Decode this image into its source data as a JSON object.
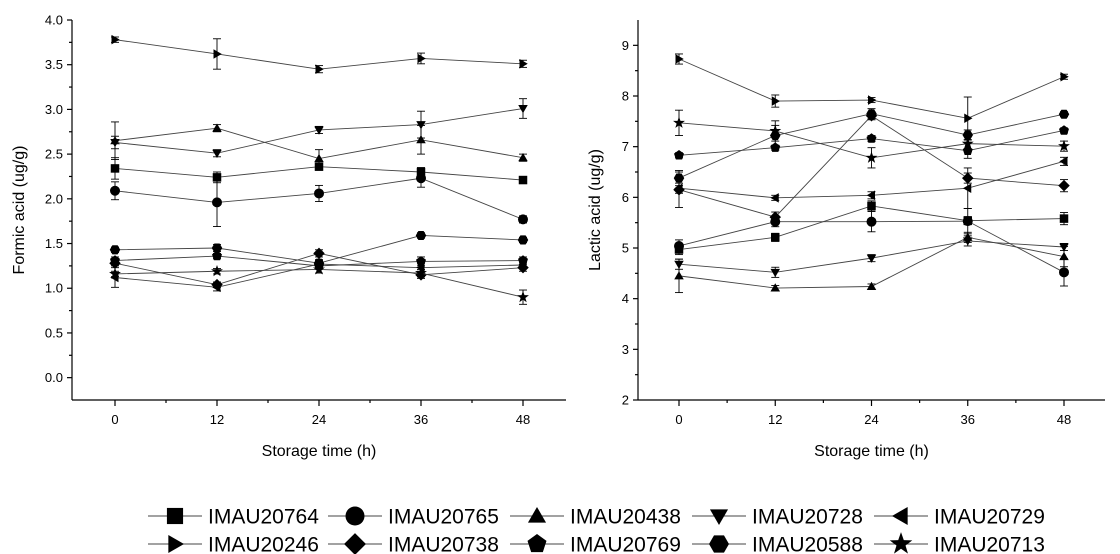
{
  "chart_data": [
    {
      "type": "line",
      "xlabel": "Storage time (h)",
      "ylabel": "Formic acid (ug/g)",
      "x": [
        0,
        12,
        24,
        36,
        48
      ],
      "xticks": [
        "0",
        "12",
        "24",
        "36",
        "48"
      ],
      "ylim": [
        -0.25,
        4.0
      ],
      "yticks": [
        "0.0",
        "0.5",
        "1.0",
        "1.5",
        "2.0",
        "2.5",
        "3.0",
        "3.5",
        "4.0"
      ],
      "series": [
        {
          "name": "IMAU20764",
          "marker": "square",
          "values": [
            2.34,
            2.24,
            2.36,
            2.3,
            2.21
          ],
          "errors": [
            0.12,
            0.06,
            0.04,
            0.05,
            0.03
          ]
        },
        {
          "name": "IMAU20765",
          "marker": "circle",
          "values": [
            2.09,
            1.96,
            2.06,
            2.23,
            1.77
          ],
          "errors": [
            0.1,
            0.27,
            0.09,
            0.1,
            0.04
          ]
        },
        {
          "name": "IMAU20438",
          "marker": "triangle-up",
          "values": [
            2.65,
            2.79,
            2.45,
            2.66,
            2.46
          ],
          "errors": [
            0.21,
            0.04,
            0.1,
            0.16,
            0.04
          ]
        },
        {
          "name": "IMAU20728",
          "marker": "triangle-down",
          "values": [
            2.63,
            2.51,
            2.77,
            2.83,
            3.01
          ],
          "errors": [
            0.07,
            0.04,
            0.04,
            0.15,
            0.11
          ]
        },
        {
          "name": "IMAU20729",
          "marker": "triangle-left",
          "values": [
            1.12,
            1.01,
            1.27,
            1.23,
            1.26
          ],
          "errors": [
            0.11,
            0.04,
            0.04,
            0.05,
            0.03
          ]
        },
        {
          "name": "IMAU20246",
          "marker": "triangle-right",
          "values": [
            3.78,
            3.62,
            3.45,
            3.57,
            3.51
          ],
          "errors": [
            0.03,
            0.17,
            0.04,
            0.06,
            0.04
          ]
        },
        {
          "name": "IMAU20738",
          "marker": "diamond",
          "values": [
            1.28,
            1.04,
            1.39,
            1.15,
            1.23
          ],
          "errors": [
            0.03,
            0.03,
            0.04,
            0.04,
            0.04
          ]
        },
        {
          "name": "IMAU20769",
          "marker": "pentagon",
          "values": [
            1.31,
            1.36,
            1.25,
            1.3,
            1.31
          ],
          "errors": [
            0.04,
            0.03,
            0.04,
            0.05,
            0.04
          ]
        },
        {
          "name": "IMAU20588",
          "marker": "hexagon",
          "values": [
            1.43,
            1.45,
            1.28,
            1.59,
            1.54
          ],
          "errors": [
            0.03,
            0.04,
            0.04,
            0.03,
            0.03
          ]
        },
        {
          "name": "IMAU20713",
          "marker": "star",
          "values": [
            1.16,
            1.19,
            1.21,
            1.17,
            0.9
          ],
          "errors": [
            0.03,
            0.03,
            0.04,
            0.04,
            0.08
          ]
        }
      ]
    },
    {
      "type": "line",
      "xlabel": "Storage time (h)",
      "ylabel": "Lactic acid (ug/g)",
      "x": [
        0,
        12,
        24,
        36,
        48
      ],
      "xticks": [
        "0",
        "12",
        "24",
        "36",
        "48"
      ],
      "ylim": [
        2,
        9.5
      ],
      "yticks": [
        "2",
        "3",
        "4",
        "5",
        "6",
        "7",
        "8",
        "9"
      ],
      "series": [
        {
          "name": "IMAU20764",
          "marker": "square",
          "values": [
            4.97,
            5.21,
            5.83,
            5.54,
            5.58
          ],
          "errors": [
            0.1,
            0.08,
            0.1,
            0.08,
            0.12
          ]
        },
        {
          "name": "IMAU20765",
          "marker": "circle",
          "values": [
            5.04,
            5.52,
            5.52,
            5.53,
            4.52
          ],
          "errors": [
            0.12,
            0.1,
            0.2,
            0.25,
            0.27
          ]
        },
        {
          "name": "IMAU20438",
          "marker": "triangle-up",
          "values": [
            4.45,
            4.21,
            4.24,
            5.21,
            4.83
          ],
          "errors": [
            0.33,
            0.05,
            0.05,
            0.1,
            0.2
          ]
        },
        {
          "name": "IMAU20728",
          "marker": "triangle-down",
          "values": [
            4.68,
            4.52,
            4.8,
            5.14,
            5.02
          ],
          "errors": [
            0.1,
            0.1,
            0.07,
            0.1,
            0.07
          ]
        },
        {
          "name": "IMAU20729",
          "marker": "triangle-left",
          "values": [
            6.18,
            5.99,
            6.04,
            6.18,
            6.71
          ],
          "errors": [
            0.1,
            0.05,
            0.07,
            0.4,
            0.08
          ]
        },
        {
          "name": "IMAU20246",
          "marker": "triangle-right",
          "values": [
            8.73,
            7.9,
            7.92,
            7.56,
            8.38
          ],
          "errors": [
            0.1,
            0.12,
            0.05,
            0.42,
            0.05
          ]
        },
        {
          "name": "IMAU20738",
          "marker": "diamond",
          "values": [
            6.15,
            5.61,
            7.61,
            6.38,
            6.23
          ],
          "errors": [
            0.35,
            0.1,
            0.08,
            0.1,
            0.12
          ]
        },
        {
          "name": "IMAU20769",
          "marker": "pentagon",
          "values": [
            6.83,
            6.98,
            7.16,
            6.92,
            7.32
          ],
          "errors": [
            0.05,
            0.05,
            0.06,
            0.15,
            0.05
          ]
        },
        {
          "name": "IMAU20588",
          "marker": "hexagon",
          "values": [
            6.38,
            7.22,
            7.65,
            7.23,
            7.64
          ],
          "errors": [
            0.15,
            0.2,
            0.1,
            0.1,
            0.05
          ]
        },
        {
          "name": "IMAU20713",
          "marker": "star",
          "values": [
            7.47,
            7.31,
            6.78,
            7.06,
            7.01
          ],
          "errors": [
            0.25,
            0.2,
            0.2,
            0.15,
            0.1
          ]
        }
      ]
    }
  ],
  "legend": {
    "rows": [
      [
        "IMAU20764",
        "IMAU20765",
        "IMAU20438",
        "IMAU20728",
        "IMAU20729"
      ],
      [
        "IMAU20246",
        "IMAU20738",
        "IMAU20769",
        "IMAU20588",
        "IMAU20713"
      ]
    ],
    "markers": [
      [
        "square",
        "circle",
        "triangle-up",
        "triangle-down",
        "triangle-left"
      ],
      [
        "triangle-right",
        "diamond",
        "pentagon",
        "hexagon",
        "star"
      ]
    ]
  }
}
